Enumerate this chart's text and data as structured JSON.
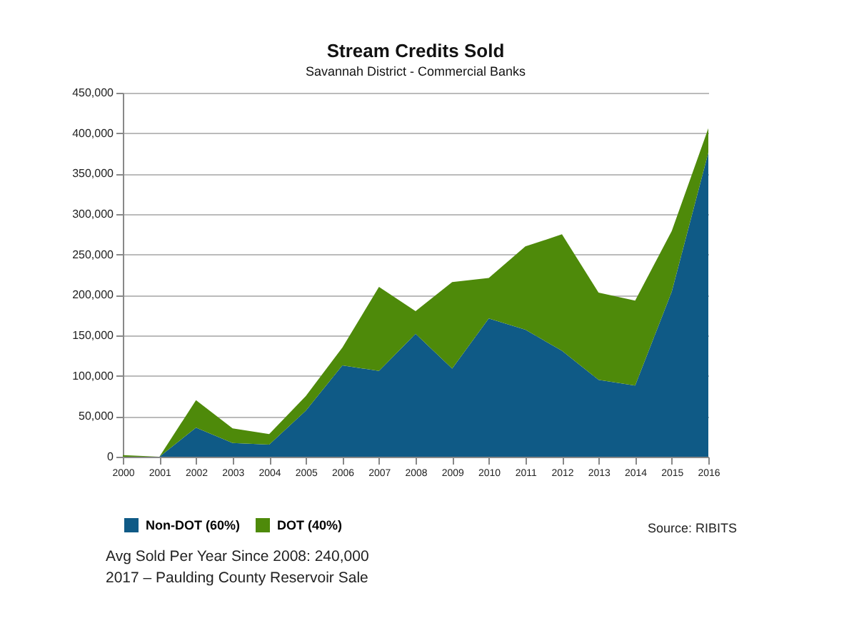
{
  "chart_data": {
    "type": "area",
    "stacked": true,
    "title": "Stream Credits Sold",
    "subtitle": "Savannah District - Commercial Banks",
    "categories": [
      "2000",
      "2001",
      "2002",
      "2003",
      "2004",
      "2005",
      "2006",
      "2007",
      "2008",
      "2009",
      "2010",
      "2011",
      "2012",
      "2013",
      "2014",
      "2015",
      "2016"
    ],
    "series": [
      {
        "name": "Non-DOT (60%)",
        "color": "#0f5a86",
        "values": [
          0,
          0,
          36000,
          17000,
          15000,
          57000,
          113000,
          106000,
          152000,
          109000,
          171000,
          157000,
          131000,
          95000,
          88000,
          204000,
          376000
        ]
      },
      {
        "name": "DOT (40%)",
        "color": "#4e8a0a",
        "values": [
          2000,
          0,
          34000,
          18000,
          13000,
          18000,
          22000,
          104000,
          28000,
          107000,
          50000,
          103000,
          144000,
          108000,
          105000,
          75000,
          30000
        ]
      }
    ],
    "ylim": [
      0,
      450000
    ],
    "yticks": [
      0,
      {
        "value": 50000,
        "label": "50,000"
      },
      {
        "value": 100000,
        "label": "100,000"
      },
      {
        "value": 150000,
        "label": "150,000"
      },
      {
        "value": 200000,
        "label": "200,000"
      },
      {
        "value": 250000,
        "label": "250,000"
      },
      {
        "value": 300000,
        "label": "300,000"
      },
      {
        "value": 350000,
        "label": "350,000"
      },
      {
        "value": 400000,
        "label": "400,000"
      },
      {
        "value": 450000,
        "label": "450,000"
      }
    ],
    "grid": "y",
    "legend": "bottom",
    "annotations": [
      "Source:  RIBITS",
      "Avg Sold Per Year Since 2008:  240,000",
      "2017 – Paulding County Reservoir Sale"
    ]
  }
}
